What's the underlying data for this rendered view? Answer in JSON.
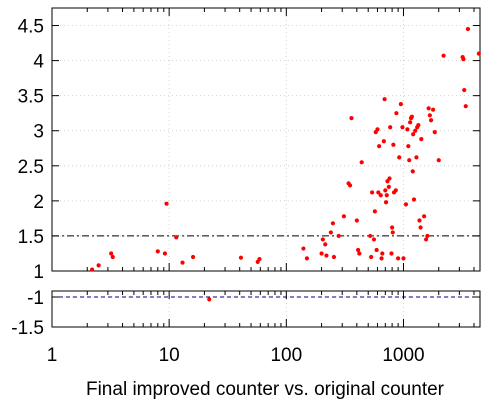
{
  "chart_data": {
    "type": "scatter",
    "xlabel": "Final improved counter vs. original counter",
    "x_scale": "log",
    "x_ticks": [
      1,
      10,
      100,
      1000
    ],
    "x_tick_labels": [
      "1",
      "10",
      "100",
      "1000"
    ],
    "xlim": [
      1,
      4500
    ],
    "grid": true,
    "marker_color": "#ff0000",
    "reference_color": "#000080",
    "panels": [
      {
        "name": "upper",
        "ylim": [
          1,
          4.75
        ],
        "y_ticks": [
          1,
          1.5,
          2,
          2.5,
          3,
          3.5,
          4,
          4.5
        ],
        "y_tick_labels": [
          "1",
          "1.5",
          "2",
          "2.5",
          "3",
          "3.5",
          "4",
          "4.5"
        ],
        "reference_lines": [
          1.5,
          1
        ],
        "points": [
          [
            2.2,
            1.02
          ],
          [
            2.5,
            1.08
          ],
          [
            3.2,
            1.25
          ],
          [
            3.3,
            1.2
          ],
          [
            8,
            1.28
          ],
          [
            9.2,
            1.25
          ],
          [
            9.5,
            1.96
          ],
          [
            11.5,
            1.48
          ],
          [
            13,
            1.12
          ],
          [
            16,
            1.2
          ],
          [
            41,
            1.19
          ],
          [
            57,
            1.13
          ],
          [
            59,
            1.17
          ],
          [
            140,
            1.32
          ],
          [
            150,
            1.18
          ],
          [
            200,
            1.25
          ],
          [
            205,
            1.45
          ],
          [
            215,
            1.38
          ],
          [
            220,
            1.22
          ],
          [
            240,
            1.55
          ],
          [
            250,
            1.68
          ],
          [
            255,
            1.2
          ],
          [
            280,
            1.5
          ],
          [
            310,
            1.78
          ],
          [
            340,
            2.25
          ],
          [
            350,
            2.22
          ],
          [
            360,
            3.18
          ],
          [
            400,
            1.72
          ],
          [
            410,
            1.3
          ],
          [
            420,
            1.25
          ],
          [
            440,
            2.55
          ],
          [
            520,
            1.5
          ],
          [
            530,
            1.2
          ],
          [
            540,
            2.12
          ],
          [
            560,
            1.45
          ],
          [
            570,
            1.85
          ],
          [
            580,
            2.98
          ],
          [
            590,
            1.3
          ],
          [
            600,
            3.02
          ],
          [
            610,
            2.12
          ],
          [
            620,
            2.78
          ],
          [
            640,
            2.08
          ],
          [
            650,
            1.18
          ],
          [
            660,
            1.25
          ],
          [
            680,
            2.85
          ],
          [
            690,
            3.45
          ],
          [
            700,
            2.15
          ],
          [
            710,
            1.98
          ],
          [
            720,
            2.08
          ],
          [
            730,
            2.28
          ],
          [
            750,
            2.2
          ],
          [
            760,
            2.32
          ],
          [
            770,
            3.05
          ],
          [
            790,
            1.25
          ],
          [
            800,
            1.62
          ],
          [
            810,
            1.55
          ],
          [
            820,
            2.8
          ],
          [
            830,
            2.12
          ],
          [
            860,
            2.15
          ],
          [
            870,
            3.25
          ],
          [
            900,
            1.18
          ],
          [
            920,
            2.62
          ],
          [
            950,
            3.38
          ],
          [
            980,
            3.05
          ],
          [
            1000,
            1.18
          ],
          [
            1050,
            1.95
          ],
          [
            1080,
            3.02
          ],
          [
            1100,
            2.78
          ],
          [
            1120,
            2.58
          ],
          [
            1140,
            3.12
          ],
          [
            1160,
            3.18
          ],
          [
            1180,
            3.2
          ],
          [
            1200,
            2.42
          ],
          [
            1210,
            2.95
          ],
          [
            1230,
            2.02
          ],
          [
            1260,
            3.0
          ],
          [
            1290,
            2.62
          ],
          [
            1310,
            3.05
          ],
          [
            1340,
            3.08
          ],
          [
            1370,
            1.72
          ],
          [
            1400,
            1.62
          ],
          [
            1420,
            2.88
          ],
          [
            1500,
            1.78
          ],
          [
            1560,
            1.45
          ],
          [
            1600,
            1.5
          ],
          [
            1640,
            3.32
          ],
          [
            1680,
            3.22
          ],
          [
            1720,
            3.15
          ],
          [
            1790,
            3.3
          ],
          [
            1850,
            2.98
          ],
          [
            2000,
            2.58
          ],
          [
            2200,
            4.07
          ],
          [
            3200,
            4.05
          ],
          [
            3250,
            4.02
          ],
          [
            3300,
            3.58
          ],
          [
            3400,
            3.35
          ],
          [
            3550,
            4.45
          ],
          [
            4400,
            4.1
          ]
        ]
      },
      {
        "name": "lower",
        "ylim": [
          -1.5,
          -0.9
        ],
        "y_ticks": [
          -1,
          -1.5
        ],
        "y_tick_labels": [
          "-1",
          "-1.5"
        ],
        "reference_lines": [
          -1
        ],
        "points": [
          [
            22,
            -1.04
          ]
        ]
      }
    ]
  }
}
